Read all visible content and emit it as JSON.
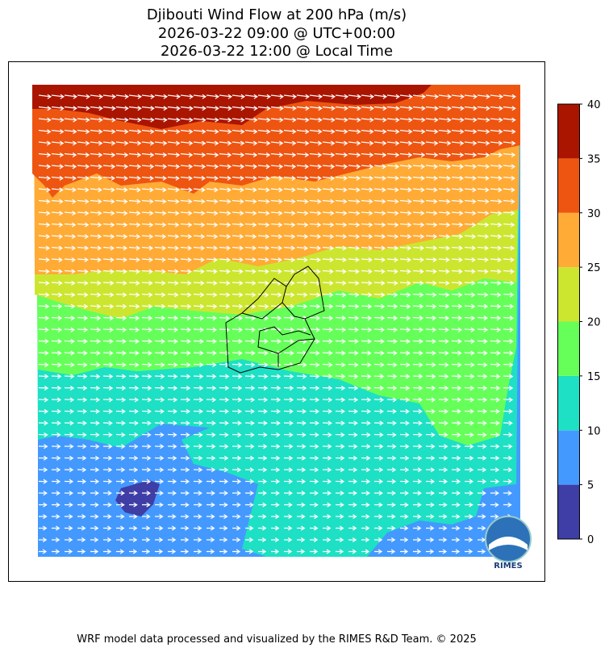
{
  "title": [
    "Djibouti Wind Flow at 200 hPa (m/s)",
    "2026-03-22 09:00 @ UTC+00:00",
    "2026-03-22 12:00 @ Local Time"
  ],
  "colorbar": {
    "lim": [
      0,
      40
    ],
    "ticks": [
      0,
      5,
      10,
      15,
      20,
      25,
      30,
      35,
      40
    ],
    "colors": [
      "#3e3ea6",
      "#4499ff",
      "#1ee0c4",
      "#66ff5a",
      "#cce630",
      "#ffab36",
      "#ee5511",
      "#aa1500"
    ]
  },
  "logo": "RIMES",
  "footer": "WRF model data processed and visualized by the RIMES R&D Team. © 2025"
}
